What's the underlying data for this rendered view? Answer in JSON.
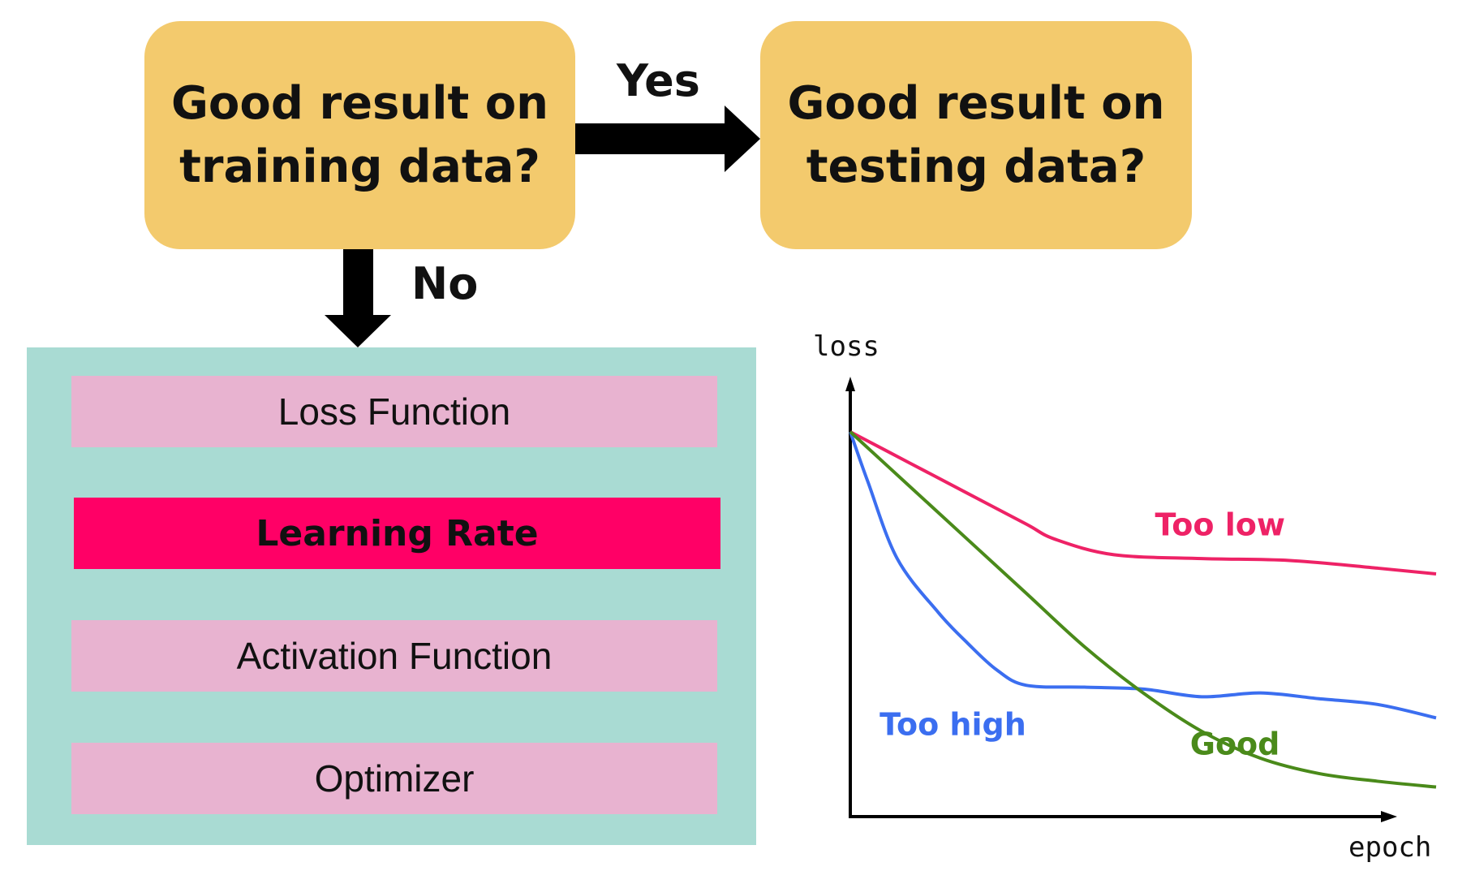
{
  "flow": {
    "training_question": "Good result on\ntraining data?",
    "testing_question": "Good result on\ntesting data?",
    "yes_label": "Yes",
    "no_label": "No",
    "box_color": "#f3ca6d"
  },
  "options": {
    "items": [
      {
        "label": "Loss Function",
        "active": false
      },
      {
        "label": "Learning Rate",
        "active": true
      },
      {
        "label": "Activation Function",
        "active": false
      },
      {
        "label": "Optimizer",
        "active": false
      }
    ],
    "panel_color": "#a9dbd3",
    "item_color": "#e8b3d0",
    "active_color": "#ff0066"
  },
  "chart_data": {
    "type": "line",
    "title": "",
    "xlabel": "epoch",
    "ylabel": "loss",
    "xlim": [
      0,
      1
    ],
    "ylim": [
      0,
      1
    ],
    "grid": false,
    "series": [
      {
        "name": "Too low",
        "color": "#ee2266",
        "x": [
          0,
          0.1,
          0.2,
          0.3,
          0.35,
          0.45,
          0.6,
          0.75,
          0.9,
          1.0
        ],
        "y": [
          1.0,
          0.92,
          0.84,
          0.76,
          0.72,
          0.68,
          0.67,
          0.665,
          0.645,
          0.63
        ]
      },
      {
        "name": "Too high",
        "color": "#3b6ef0",
        "x": [
          0,
          0.03,
          0.08,
          0.15,
          0.2,
          0.25,
          0.3,
          0.4,
          0.5,
          0.6,
          0.7,
          0.8,
          0.9,
          1.0
        ],
        "y": [
          1.0,
          0.87,
          0.67,
          0.53,
          0.45,
          0.38,
          0.34,
          0.335,
          0.33,
          0.31,
          0.32,
          0.305,
          0.29,
          0.255
        ]
      },
      {
        "name": "Good",
        "color": "#4a8a1a",
        "x": [
          0,
          0.1,
          0.2,
          0.3,
          0.4,
          0.5,
          0.6,
          0.7,
          0.8,
          0.9,
          1.0
        ],
        "y": [
          1.0,
          0.86,
          0.72,
          0.58,
          0.44,
          0.32,
          0.22,
          0.15,
          0.11,
          0.09,
          0.075
        ]
      }
    ]
  }
}
